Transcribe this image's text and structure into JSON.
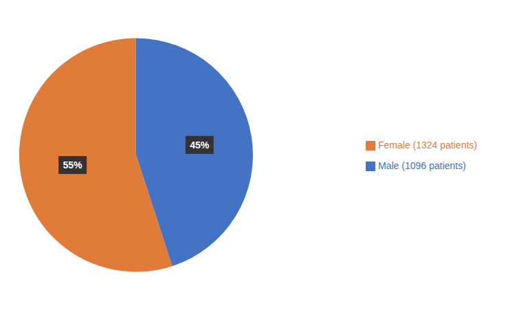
{
  "chart_data": {
    "type": "pie",
    "categories": [
      "Male (1096 patients)",
      "Female (1324 patients)"
    ],
    "values": [
      45,
      55
    ],
    "value_labels": [
      "45%",
      "55%"
    ],
    "colors": [
      "#4472C4",
      "#E07B39"
    ],
    "data_labels": true,
    "legend": "right"
  }
}
